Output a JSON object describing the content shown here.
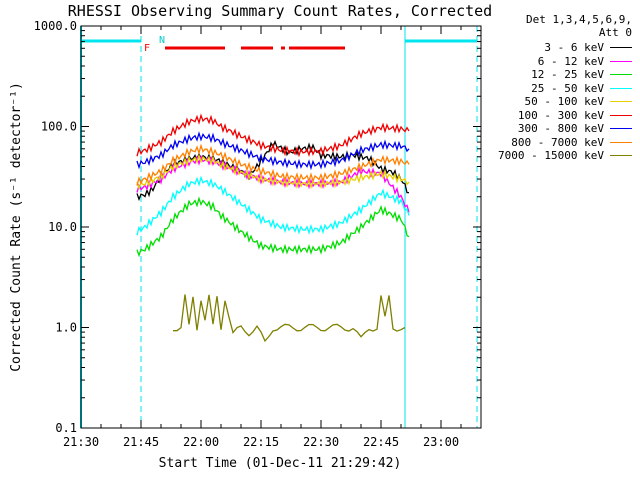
{
  "chart_data": {
    "type": "line",
    "title": "RHESSI Observing Summary Count Rates, Corrected",
    "xlabel": "Start Time (01-Dec-11 21:29:42)",
    "ylabel": "Corrected Count Rate (s⁻¹ detector⁻¹)",
    "y_scale": "log",
    "ylim": [
      0.1,
      1000.0
    ],
    "y_ticks": [
      "1000.0",
      "100.0",
      "10.0",
      "1.0",
      "0.1"
    ],
    "y_tick_values": [
      1000,
      100,
      10,
      1,
      0.1
    ],
    "x_ticks": [
      "21:30",
      "21:45",
      "22:00",
      "22:15",
      "22:30",
      "22:45",
      "23:00"
    ],
    "x_tick_minutes": [
      0,
      15,
      30,
      45,
      60,
      75,
      90
    ],
    "xlim_minutes": [
      0,
      100
    ],
    "legend_header": [
      "Det 1,3,4,5,6,9,",
      "Att 0"
    ],
    "legend_position": "right",
    "series": [
      {
        "name": "3 - 6 keV",
        "color": "#000000",
        "x": [
          14,
          16,
          18,
          20,
          23,
          27,
          30,
          33,
          35,
          40,
          42,
          45,
          48,
          52,
          55,
          58,
          60,
          65,
          68,
          72,
          75,
          78,
          80,
          82
        ],
        "y": [
          20,
          21,
          24,
          32,
          42,
          48,
          50,
          48,
          45,
          36,
          32,
          45,
          68,
          55,
          60,
          62,
          52,
          50,
          52,
          48,
          38,
          35,
          30,
          22
        ]
      },
      {
        "name": "6 - 12 keV",
        "color": "#ff00ff",
        "x": [
          14,
          16,
          20,
          23,
          27,
          30,
          33,
          35,
          40,
          45,
          50,
          55,
          60,
          65,
          70,
          75,
          80,
          82
        ],
        "y": [
          24,
          25,
          30,
          38,
          44,
          47,
          45,
          42,
          35,
          30,
          28,
          27,
          27,
          28,
          36,
          34,
          20,
          14
        ]
      },
      {
        "name": "12 - 25 keV",
        "color": "#00dd00",
        "x": [
          14,
          16,
          20,
          23,
          27,
          30,
          33,
          35,
          40,
          45,
          50,
          55,
          60,
          65,
          70,
          75,
          80,
          82
        ],
        "y": [
          5.5,
          6,
          8,
          12,
          17,
          18,
          16,
          13,
          9,
          6.5,
          6,
          6,
          6,
          7,
          10,
          15,
          12,
          8
        ]
      },
      {
        "name": "25 - 50 keV",
        "color": "#00ffff",
        "x": [
          14,
          16,
          20,
          23,
          27,
          30,
          33,
          35,
          40,
          45,
          50,
          55,
          60,
          65,
          70,
          75,
          80,
          82
        ],
        "y": [
          9,
          10,
          14,
          20,
          27,
          29,
          27,
          24,
          17,
          12,
          10,
          9.5,
          9.5,
          11,
          15,
          22,
          18,
          13
        ]
      },
      {
        "name": "50 - 100 keV",
        "color": "#e6d000",
        "x": [
          14,
          16,
          20,
          23,
          27,
          30,
          33,
          35,
          40,
          45,
          50,
          55,
          60,
          65,
          70,
          75,
          80,
          82
        ],
        "y": [
          26,
          27,
          32,
          40,
          46,
          48,
          46,
          42,
          35,
          30,
          28,
          27,
          27,
          28,
          31,
          34,
          30,
          28
        ]
      },
      {
        "name": "100 - 300 keV",
        "color": "#ee0000",
        "x": [
          14,
          16,
          20,
          23,
          27,
          30,
          33,
          35,
          40,
          45,
          50,
          55,
          60,
          65,
          70,
          75,
          80,
          82
        ],
        "y": [
          55,
          58,
          70,
          90,
          112,
          120,
          115,
          100,
          80,
          65,
          58,
          56,
          57,
          65,
          85,
          98,
          95,
          90
        ]
      },
      {
        "name": "300 - 800 keV",
        "color": "#0000ee",
        "x": [
          14,
          16,
          20,
          23,
          27,
          30,
          33,
          35,
          40,
          45,
          50,
          55,
          60,
          65,
          70,
          75,
          80,
          82
        ],
        "y": [
          42,
          44,
          52,
          65,
          76,
          80,
          77,
          70,
          58,
          48,
          44,
          42,
          42,
          46,
          58,
          66,
          64,
          60
        ]
      },
      {
        "name": "800 - 7000 keV",
        "color": "#ff8000",
        "x": [
          14,
          16,
          20,
          23,
          27,
          30,
          33,
          35,
          40,
          45,
          50,
          55,
          60,
          65,
          70,
          75,
          80,
          82
        ],
        "y": [
          28,
          30,
          36,
          46,
          56,
          60,
          56,
          52,
          42,
          36,
          32,
          31,
          31,
          34,
          40,
          47,
          45,
          42
        ]
      },
      {
        "name": "7000 - 15000 keV",
        "color": "#808000",
        "x": [
          23,
          25,
          26,
          27,
          28,
          29,
          30,
          31,
          32,
          33,
          34,
          35,
          36,
          38,
          40,
          42,
          44,
          46,
          48,
          50,
          55,
          60,
          62,
          64,
          68,
          70,
          72,
          74,
          75,
          76,
          77,
          78,
          80,
          81
        ],
        "y": [
          1,
          1,
          2,
          1,
          2,
          1,
          2,
          1.2,
          2,
          1,
          2,
          1,
          2,
          0.85,
          1,
          0.9,
          1,
          0.7,
          1,
          1,
          1,
          1,
          1,
          1,
          1,
          0.75,
          1,
          1,
          2,
          1.2,
          2,
          1,
          1,
          1
        ]
      }
    ],
    "markers": {
      "cyan_top_bars": [
        [
          0,
          15
        ],
        [
          81,
          99
        ]
      ],
      "cyan_dashed_lines": [
        15,
        81,
        99
      ],
      "cyan_solid_line": 0,
      "flare_bars": [
        [
          21,
          36
        ],
        [
          40,
          48
        ],
        [
          50,
          51
        ],
        [
          52,
          66
        ]
      ],
      "labels": [
        "F",
        "N"
      ]
    }
  }
}
